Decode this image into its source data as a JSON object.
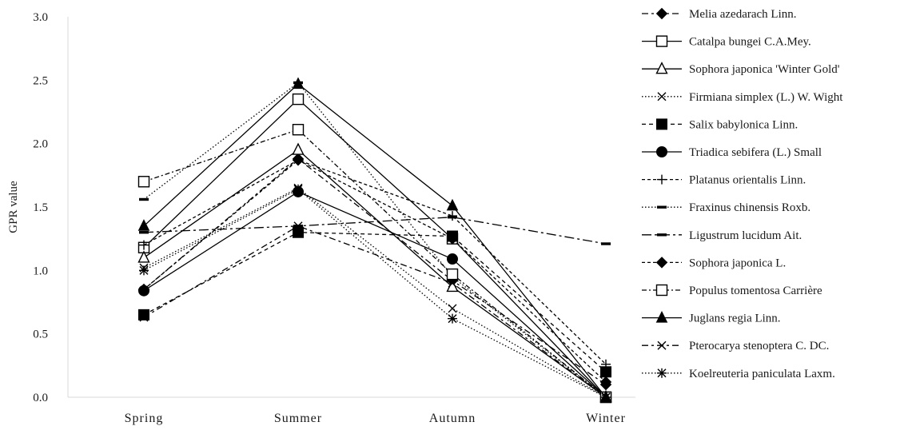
{
  "chart_data": {
    "type": "line",
    "title": "",
    "xlabel": "",
    "ylabel": "GPR value",
    "categories": [
      "Spring",
      "Summer",
      "Autumn",
      "Winter"
    ],
    "ylim": [
      0,
      3.0
    ],
    "yticks": [
      "0.0",
      "0.5",
      "1.0",
      "1.5",
      "2.0",
      "2.5",
      "3.0"
    ],
    "grid": false,
    "legend_position": "right",
    "series": [
      {
        "name": "Melia azedarach Linn.",
        "values": [
          0.85,
          1.88,
          0.92,
          0.1
        ],
        "dash": "8,4,3,4",
        "marker": "diamond-filled"
      },
      {
        "name": "Catalpa bungei C.A.Mey.",
        "values": [
          1.18,
          2.35,
          1.25,
          0.0
        ],
        "dash": "none",
        "marker": "square-open"
      },
      {
        "name": "Sophora japonica 'Winter Gold'",
        "values": [
          1.1,
          1.95,
          0.87,
          0.0
        ],
        "dash": "none",
        "marker": "triangle-open"
      },
      {
        "name": "Firmiana simplex (L.) W. Wight",
        "values": [
          1.02,
          1.65,
          0.7,
          0.0
        ],
        "dash": "1.5,2.5",
        "marker": "x"
      },
      {
        "name": "Salix babylonica Linn.",
        "values": [
          0.65,
          1.3,
          1.27,
          0.2
        ],
        "dash": "5,4",
        "marker": "square-filled"
      },
      {
        "name": "Triadica sebifera (L.) Small",
        "values": [
          0.84,
          1.62,
          1.09,
          0.0
        ],
        "dash": "none",
        "marker": "circle-filled"
      },
      {
        "name": "Platanus orientalis Linn.",
        "values": [
          1.2,
          1.87,
          1.43,
          0.26
        ],
        "dash": "4,3",
        "marker": "plus"
      },
      {
        "name": "Fraxinus chinensis Roxb.",
        "values": [
          1.56,
          2.48,
          0.95,
          0.0
        ],
        "dash": "1.5,2.5",
        "marker": "dash"
      },
      {
        "name": "Ligustrum lucidum Ait.",
        "values": [
          1.3,
          1.35,
          1.42,
          1.21
        ],
        "dash": "12,4,3,4",
        "marker": "dash"
      },
      {
        "name": "Sophora japonica L.",
        "values": [
          0.85,
          1.87,
          1.25,
          0.12
        ],
        "dash": "4,3",
        "marker": "diamond-filled"
      },
      {
        "name": "Populus tomentosa Carrière",
        "values": [
          1.7,
          2.11,
          0.97,
          0.0
        ],
        "dash": "6,3,2,3",
        "marker": "square-open"
      },
      {
        "name": "Juglans regia Linn.",
        "values": [
          1.35,
          2.47,
          1.51,
          0.0
        ],
        "dash": "none",
        "marker": "triangle-filled"
      },
      {
        "name": "Pterocarya stenoptera C. DC.",
        "values": [
          0.63,
          1.35,
          0.9,
          0.0
        ],
        "dash": "8,4,3,4",
        "marker": "x"
      },
      {
        "name": "Koelreuteria paniculata Laxm.",
        "values": [
          1.0,
          1.64,
          0.62,
          0.0
        ],
        "dash": "1.5,2.5",
        "marker": "asterisk"
      }
    ]
  }
}
